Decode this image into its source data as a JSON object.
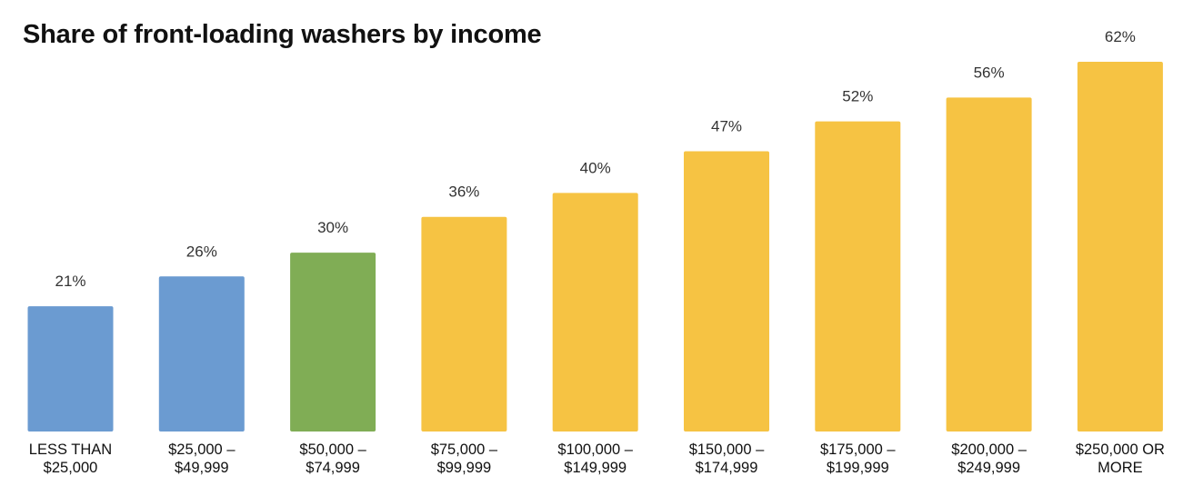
{
  "chart_data": {
    "type": "bar",
    "title": "Share of front-loading washers by income",
    "xlabel": "",
    "ylabel": "",
    "ylim": [
      0,
      62
    ],
    "grid": false,
    "legend": "none",
    "categories": [
      [
        "LESS THAN",
        "$25,000"
      ],
      [
        "$25,000 –",
        "$49,999"
      ],
      [
        "$50,000 –",
        "$74,999"
      ],
      [
        "$75,000 –",
        "$99,999"
      ],
      [
        "$100,000 –",
        "$149,999"
      ],
      [
        "$150,000 –",
        "$174,999"
      ],
      [
        "$175,000 –",
        "$199,999"
      ],
      [
        "$200,000 –",
        "$249,999"
      ],
      [
        "$250,000 OR",
        "MORE"
      ]
    ],
    "values": [
      21,
      26,
      30,
      36,
      40,
      47,
      52,
      56,
      62
    ],
    "value_labels": [
      "21%",
      "26%",
      "30%",
      "36%",
      "40%",
      "47%",
      "52%",
      "56%",
      "62%"
    ],
    "colors": [
      "#6b9bd1",
      "#6b9bd1",
      "#80ad55",
      "#f6c343",
      "#f6c343",
      "#f6c343",
      "#f6c343",
      "#f6c343",
      "#f6c343"
    ]
  }
}
